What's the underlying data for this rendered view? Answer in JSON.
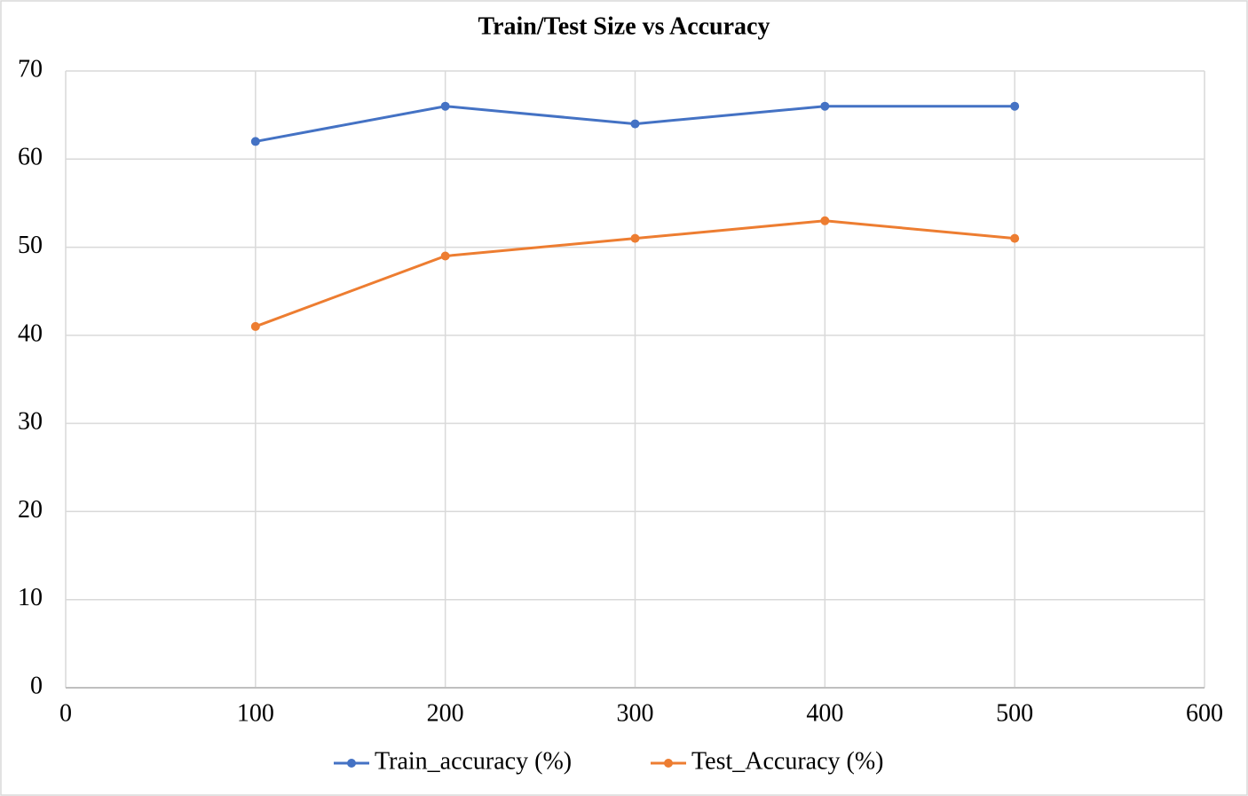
{
  "chart_data": {
    "type": "line",
    "title": "Train/Test Size vs Accuracy",
    "x": [
      100,
      200,
      300,
      400,
      500
    ],
    "series": [
      {
        "name": "Train_accuracy (%)",
        "color": "#4472c4",
        "values": [
          62,
          66,
          64,
          66,
          66
        ]
      },
      {
        "name": "Test_Accuracy (%)",
        "color": "#ed7d31",
        "values": [
          41,
          49,
          51,
          53,
          51
        ]
      }
    ],
    "xlim": [
      0,
      600
    ],
    "xticks": [
      0,
      100,
      200,
      300,
      400,
      500,
      600
    ],
    "ylim": [
      0,
      70
    ],
    "yticks": [
      0,
      10,
      20,
      30,
      40,
      50,
      60,
      70
    ],
    "grid": true,
    "legend": "bottom"
  }
}
